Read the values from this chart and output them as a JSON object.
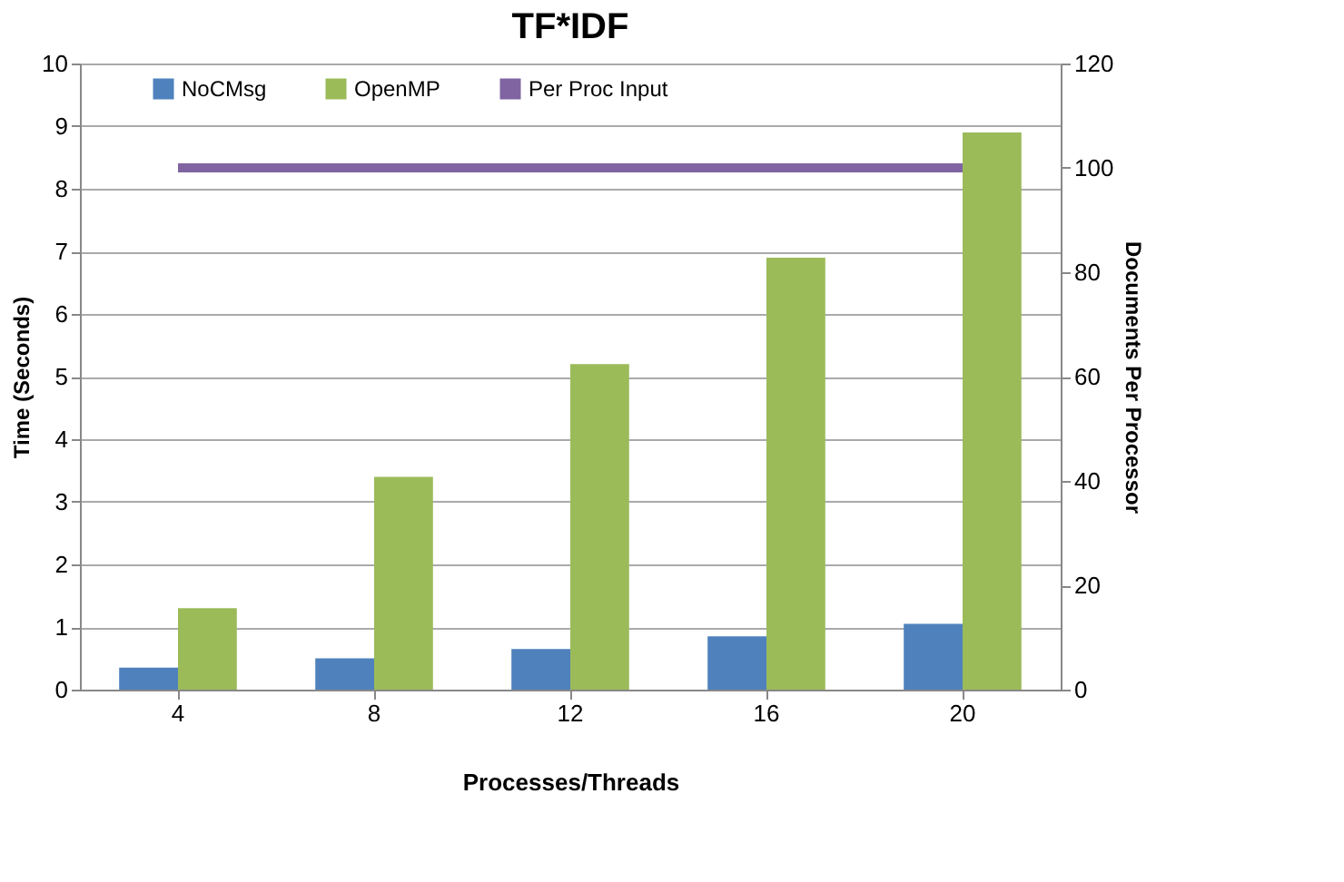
{
  "chart_data": {
    "type": "bar",
    "title": "TF*IDF",
    "xlabel": "Processes/Threads",
    "ylabel": "Time (Seconds)",
    "y2label": "Documents Per Processor",
    "categories": [
      "4",
      "8",
      "12",
      "16",
      "20"
    ],
    "series": [
      {
        "name": "NoCMsg",
        "color": "#4f81bd",
        "values": [
          0.35,
          0.5,
          0.65,
          0.85,
          1.05
        ]
      },
      {
        "name": "OpenMP",
        "color": "#9bbb59",
        "values": [
          1.3,
          3.4,
          5.2,
          6.9,
          8.9
        ]
      },
      {
        "name": "Per Proc Input",
        "color": "#8064a2",
        "type": "line",
        "axis": "y2",
        "values": [
          100,
          100,
          100,
          100,
          100
        ]
      }
    ],
    "ylim": [
      0,
      10
    ],
    "yticks": [
      0,
      1,
      2,
      3,
      4,
      5,
      6,
      7,
      8,
      9,
      10
    ],
    "y2lim": [
      0,
      120
    ],
    "y2ticks": [
      0,
      20,
      40,
      60,
      80,
      100,
      120
    ],
    "grid": "y",
    "legend": "top"
  }
}
